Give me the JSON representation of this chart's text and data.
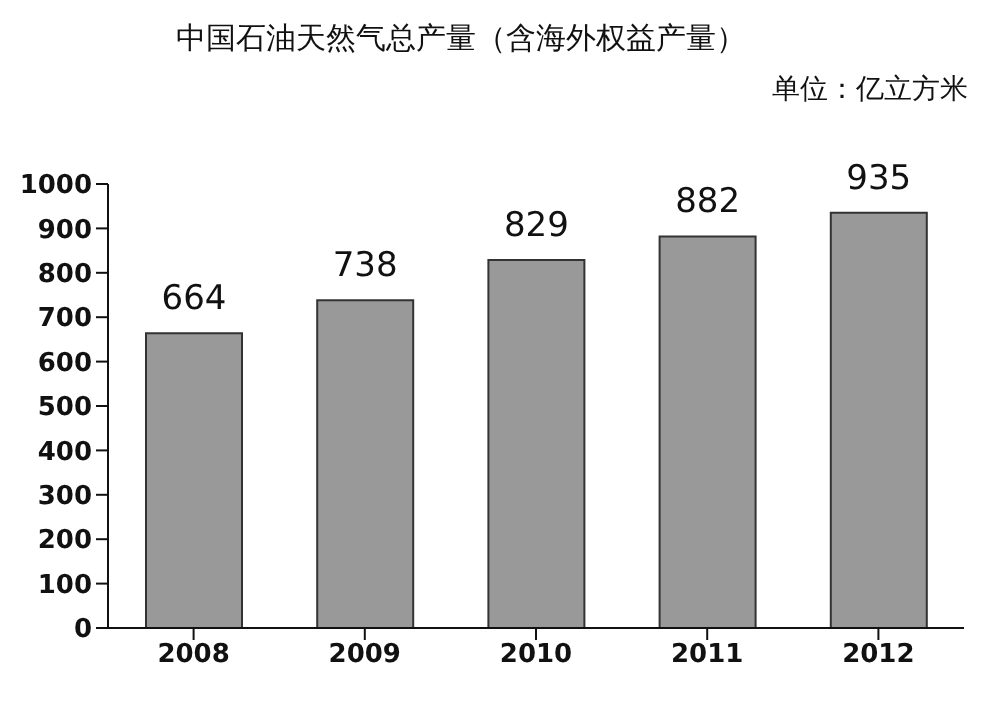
{
  "chart_data": {
    "type": "bar",
    "title": "中国石油天然气总产量（含海外权益产量）",
    "annotations": [
      "单位：亿立方米"
    ],
    "categories": [
      "2008",
      "2009",
      "2010",
      "2011",
      "2012"
    ],
    "values": [
      664,
      738,
      829,
      882,
      935
    ],
    "color": "#999999",
    "ylim": [
      0,
      1000
    ],
    "yticks": [
      0,
      100,
      200,
      300,
      400,
      500,
      600,
      700,
      800,
      900,
      1000
    ],
    "data_labels": true,
    "grid": false,
    "legend": false
  }
}
